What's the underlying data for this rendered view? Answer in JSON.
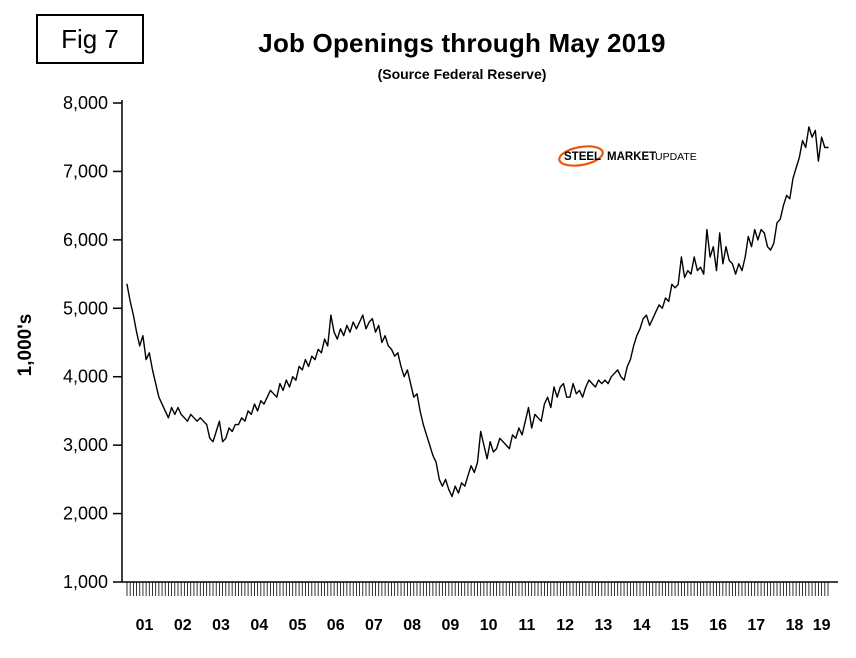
{
  "figure_label": "Fig 7",
  "header": {
    "title": "Job Openings through May 2019",
    "subtitle": "(Source Federal Reserve)"
  },
  "y_axis_unit_label": "1,000's",
  "logo": {
    "steel": "STEEL",
    "market": "MARKET",
    "update": "UPDATE",
    "blue": "#1c4587",
    "light_blue": "#8aa6cc",
    "orange": "#e8590c"
  },
  "chart_data": {
    "type": "line",
    "title": "Job Openings through May 2019",
    "subtitle": "(Source Federal Reserve)",
    "series_name": "Job Openings",
    "xlabel": "",
    "ylabel": "1,000's",
    "ylim": [
      1000,
      8000
    ],
    "ytick_step": 1000,
    "ytick_labels": [
      "1,000",
      "2,000",
      "3,000",
      "4,000",
      "5,000",
      "6,000",
      "7,000",
      "8,000"
    ],
    "x_year_labels": [
      "01",
      "02",
      "03",
      "04",
      "05",
      "06",
      "07",
      "08",
      "09",
      "10",
      "11",
      "12",
      "13",
      "14",
      "15",
      "16",
      "17",
      "18",
      "19"
    ],
    "x_start_month": "2001-01",
    "x_end_month": "2019-05",
    "grid": false,
    "legend": "none",
    "line_color": "#000000",
    "values": [
      5350,
      5100,
      4900,
      4650,
      4450,
      4600,
      4250,
      4350,
      4100,
      3900,
      3700,
      3600,
      3500,
      3400,
      3550,
      3450,
      3550,
      3450,
      3400,
      3350,
      3450,
      3400,
      3350,
      3400,
      3350,
      3300,
      3100,
      3050,
      3200,
      3350,
      3050,
      3100,
      3250,
      3200,
      3300,
      3300,
      3400,
      3350,
      3500,
      3450,
      3600,
      3500,
      3650,
      3600,
      3700,
      3800,
      3750,
      3700,
      3900,
      3800,
      3950,
      3850,
      4000,
      3950,
      4150,
      4100,
      4250,
      4150,
      4300,
      4250,
      4400,
      4350,
      4550,
      4450,
      4900,
      4650,
      4550,
      4700,
      4600,
      4750,
      4650,
      4800,
      4700,
      4800,
      4900,
      4700,
      4800,
      4850,
      4650,
      4750,
      4500,
      4600,
      4450,
      4400,
      4300,
      4350,
      4150,
      4000,
      4100,
      3900,
      3700,
      3750,
      3500,
      3300,
      3150,
      3000,
      2850,
      2750,
      2500,
      2400,
      2500,
      2350,
      2250,
      2400,
      2300,
      2450,
      2400,
      2550,
      2700,
      2600,
      2750,
      3200,
      3000,
      2800,
      3050,
      2900,
      2950,
      3100,
      3050,
      3000,
      2950,
      3150,
      3100,
      3250,
      3150,
      3350,
      3550,
      3250,
      3450,
      3400,
      3350,
      3600,
      3700,
      3550,
      3850,
      3700,
      3850,
      3900,
      3700,
      3700,
      3900,
      3750,
      3800,
      3700,
      3850,
      3950,
      3900,
      3850,
      3950,
      3900,
      3950,
      3900,
      4000,
      4050,
      4100,
      4000,
      3950,
      4150,
      4250,
      4450,
      4600,
      4700,
      4850,
      4900,
      4750,
      4850,
      4950,
      5050,
      5000,
      5150,
      5100,
      5350,
      5300,
      5350,
      5750,
      5450,
      5550,
      5500,
      5750,
      5550,
      5600,
      5500,
      6150,
      5750,
      5900,
      5550,
      6100,
      5650,
      5900,
      5700,
      5650,
      5500,
      5650,
      5550,
      5750,
      6050,
      5900,
      6150,
      6000,
      6150,
      6100,
      5900,
      5850,
      5950,
      6250,
      6300,
      6500,
      6650,
      6600,
      6900,
      7050,
      7200,
      7450,
      7350,
      7650,
      7500,
      7600,
      7150,
      7500,
      7350,
      7350
    ]
  }
}
